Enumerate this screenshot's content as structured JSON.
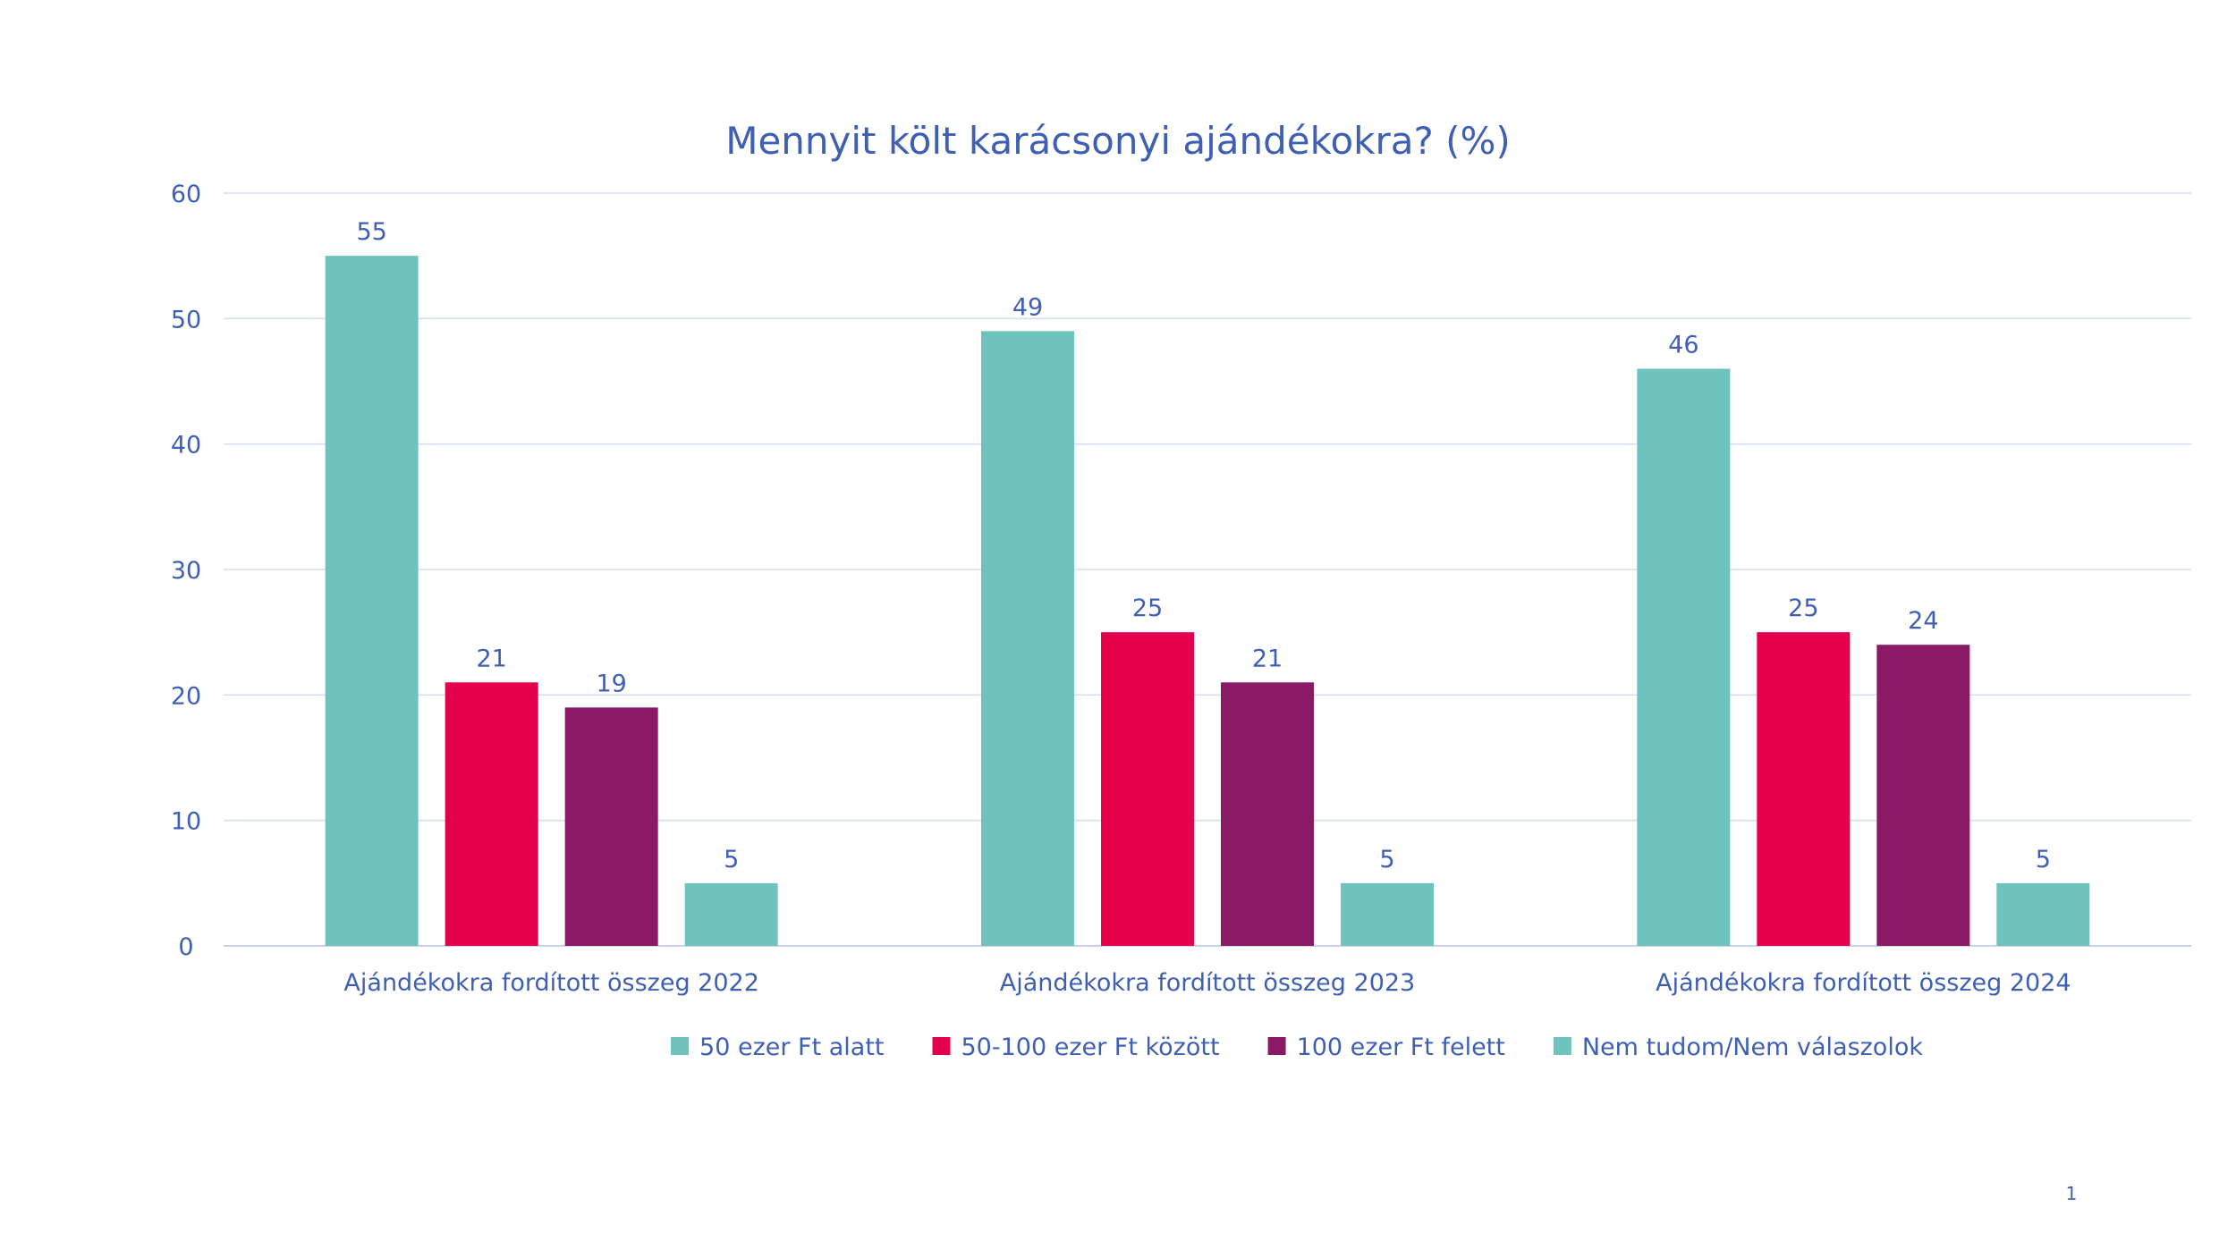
{
  "page_number": "1",
  "colors": {
    "text": "#3F5FB5",
    "grid": "#D6DDEE",
    "axis": "#C9D2E8"
  },
  "chart_data": {
    "type": "bar",
    "title": "Mennyit költ karácsonyi ajándékokra? (%)",
    "xlabel": "",
    "ylabel": "",
    "ylim": [
      0,
      60
    ],
    "yticks": [
      0,
      10,
      20,
      30,
      40,
      50,
      60
    ],
    "grid": true,
    "legend_position": "bottom",
    "categories": [
      "Ajándékokra fordított összeg 2022",
      "Ajándékokra fordított összeg 2023",
      "Ajándékokra fordított összeg 2024"
    ],
    "series": [
      {
        "name": "50 ezer Ft alatt",
        "color": "#6FC3BE",
        "values": [
          55,
          49,
          46
        ]
      },
      {
        "name": "50-100 ezer Ft között",
        "color": "#E5004B",
        "values": [
          21,
          25,
          25
        ]
      },
      {
        "name": "100 ezer Ft felett",
        "color": "#8B1A66",
        "values": [
          19,
          21,
          24
        ]
      },
      {
        "name": "Nem tudom/Nem válaszolok",
        "color": "#6FC3BE",
        "values": [
          5,
          5,
          5
        ]
      }
    ]
  }
}
